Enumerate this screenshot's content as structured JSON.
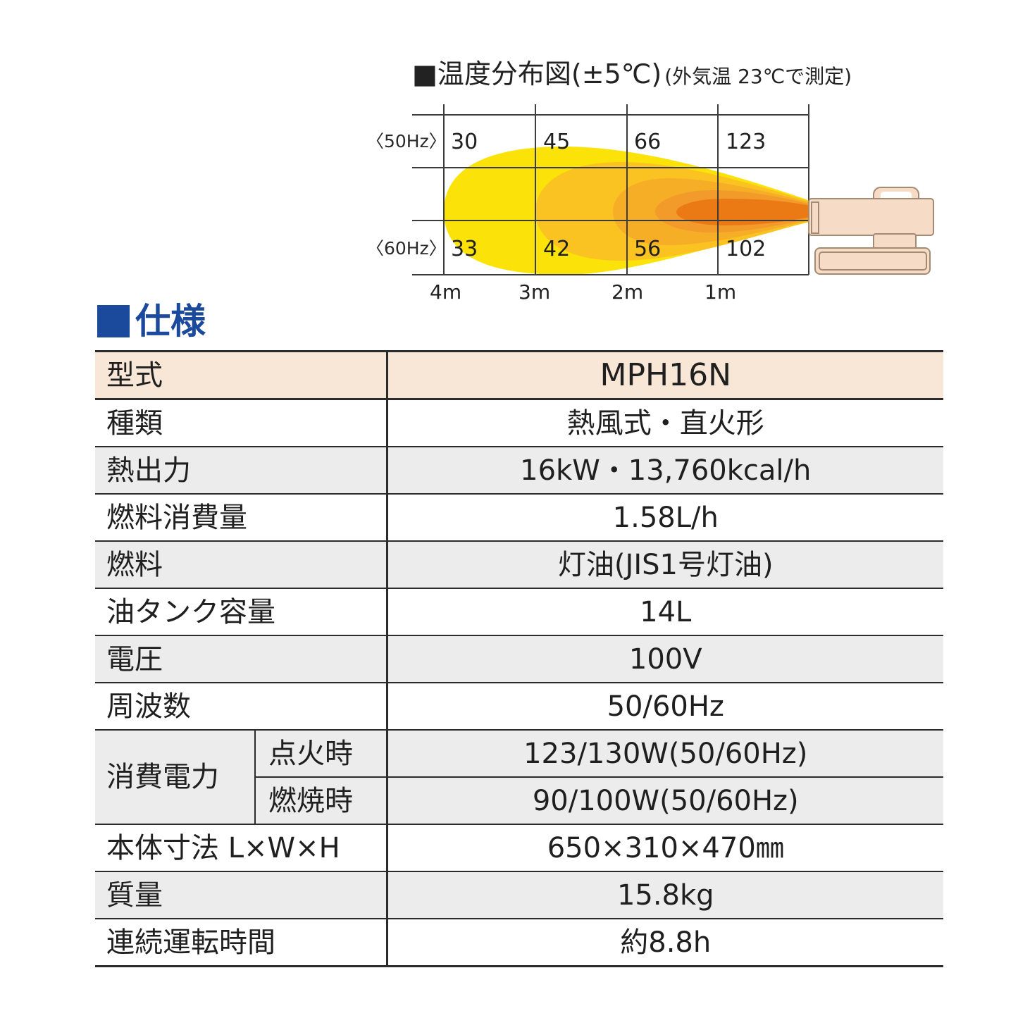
{
  "diagram": {
    "title": "■温度分布図(±5℃)",
    "note": "(外気温 23℃で測定)",
    "hz_labels": [
      "〈50Hz〉",
      "〈60Hz〉"
    ],
    "temps_50hz": [
      "30",
      "45",
      "66",
      "123"
    ],
    "temps_60hz": [
      "33",
      "42",
      "56",
      "102"
    ],
    "distances": [
      "4m",
      "3m",
      "2m",
      "1m"
    ],
    "colors": {
      "zone_outer": "#fbe30a",
      "zone_2": "#fac321",
      "zone_3": "#f7ae27",
      "zone_4": "#f29a2a",
      "zone_core": "#ec7a14",
      "heater_body": "#f6dcc6",
      "heater_outline": "#a38a73"
    }
  },
  "spec": {
    "heading": "仕様",
    "heading_color": "#1b4a9c",
    "header_row": {
      "label": "型式",
      "value": "MPH16N"
    },
    "rows": [
      {
        "label": "種類",
        "value": "熱風式・直火形"
      },
      {
        "label": "熱出力",
        "value": "16kW・13,760kcal/h"
      },
      {
        "label": "燃料消費量",
        "value": "1.58L/h"
      },
      {
        "label": "燃料",
        "value": "灯油(JIS1号灯油)"
      },
      {
        "label": "油タンク容量",
        "value": "14L"
      },
      {
        "label": "電圧",
        "value": "100V"
      },
      {
        "label": "周波数",
        "value": "50/60Hz"
      }
    ],
    "power": {
      "label": "消費電力",
      "ignition": {
        "label": "点火時",
        "value": "123/130W(50/60Hz)"
      },
      "combustion": {
        "label": "燃焼時",
        "value": "90/100W(50/60Hz)"
      }
    },
    "rows_after": [
      {
        "label": "本体寸法 L×W×H",
        "value": "650×310×470㎜"
      },
      {
        "label": "質量",
        "value": "15.8kg"
      },
      {
        "label": "連続運転時間",
        "value": "約8.8h"
      }
    ]
  }
}
